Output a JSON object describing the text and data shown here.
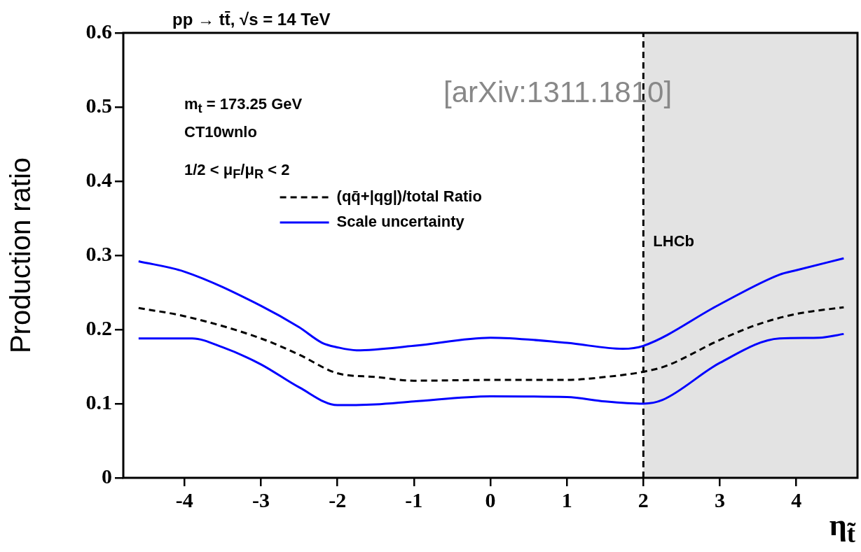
{
  "chart_data": {
    "type": "line",
    "title": "pp → tt̄, √s = 14 TeV",
    "xlabel": "η$_{t̃}$",
    "ylabel": "Production ratio",
    "xlim": [
      -4.8,
      4.8
    ],
    "xticks": [
      -4,
      -3,
      -2,
      -1,
      0,
      1,
      2,
      3,
      4
    ],
    "ylim": [
      0,
      0.6
    ],
    "yticks": [
      0,
      0.1,
      0.2,
      0.3,
      0.4,
      0.5,
      0.6
    ],
    "grid": false,
    "legend": "left",
    "series": [
      {
        "name": "(qq̄+|qg|)/total Ratio",
        "color": "#000000",
        "line_style": "dashed",
        "x": [
          -4.6,
          -4,
          -3,
          -2.5,
          -2,
          -1.5,
          -1,
          0,
          1,
          1.5,
          2,
          2.3,
          3,
          3.5,
          4,
          4.62
        ],
        "values": [
          0.229,
          0.218,
          0.188,
          0.166,
          0.141,
          0.136,
          0.131,
          0.132,
          0.132,
          0.136,
          0.143,
          0.151,
          0.186,
          0.207,
          0.221,
          0.23
        ]
      },
      {
        "name": "Scale uncertainty",
        "color": "#0000ff",
        "line_style": "solid",
        "x": [
          -4.6,
          -4,
          -3,
          -2.5,
          -2.2,
          -2,
          -1.75,
          -1,
          0,
          1,
          1.73,
          2,
          3,
          3.78,
          4,
          4.62
        ],
        "values": [
          0.292,
          0.278,
          0.232,
          0.203,
          0.182,
          0.176,
          0.172,
          0.178,
          0.189,
          0.182,
          0.174,
          0.178,
          0.234,
          0.274,
          0.28,
          0.296
        ]
      },
      {
        "color": "#0000ff",
        "line_style": "solid",
        "x": [
          -4.6,
          -3.9,
          -3.5,
          -3,
          -2.5,
          -2,
          -1.5,
          -1,
          0,
          1,
          1.5,
          2,
          2.25,
          3,
          3.78,
          4.3,
          4.62
        ],
        "values": [
          0.188,
          0.188,
          0.176,
          0.153,
          0.122,
          0.098,
          0.099,
          0.103,
          0.11,
          0.109,
          0.103,
          0.1,
          0.105,
          0.155,
          0.188,
          0.189,
          0.194
        ]
      }
    ],
    "bands": [
      {
        "axis": "x",
        "from": 2,
        "to": 4.8,
        "color": "#e3e3e3",
        "label": "LHCb"
      }
    ],
    "ref_lines": [
      {
        "axis": "x",
        "value": 2,
        "line_style": "dashed",
        "color": "#000000"
      }
    ],
    "annotations": [
      "m$_{t}$ = 173.25 GeV",
      "CT10wnlo",
      "1/2 < μ$_{F}$/μ$_{R}$ < 2",
      "[arXiv:1311.1810]"
    ]
  }
}
